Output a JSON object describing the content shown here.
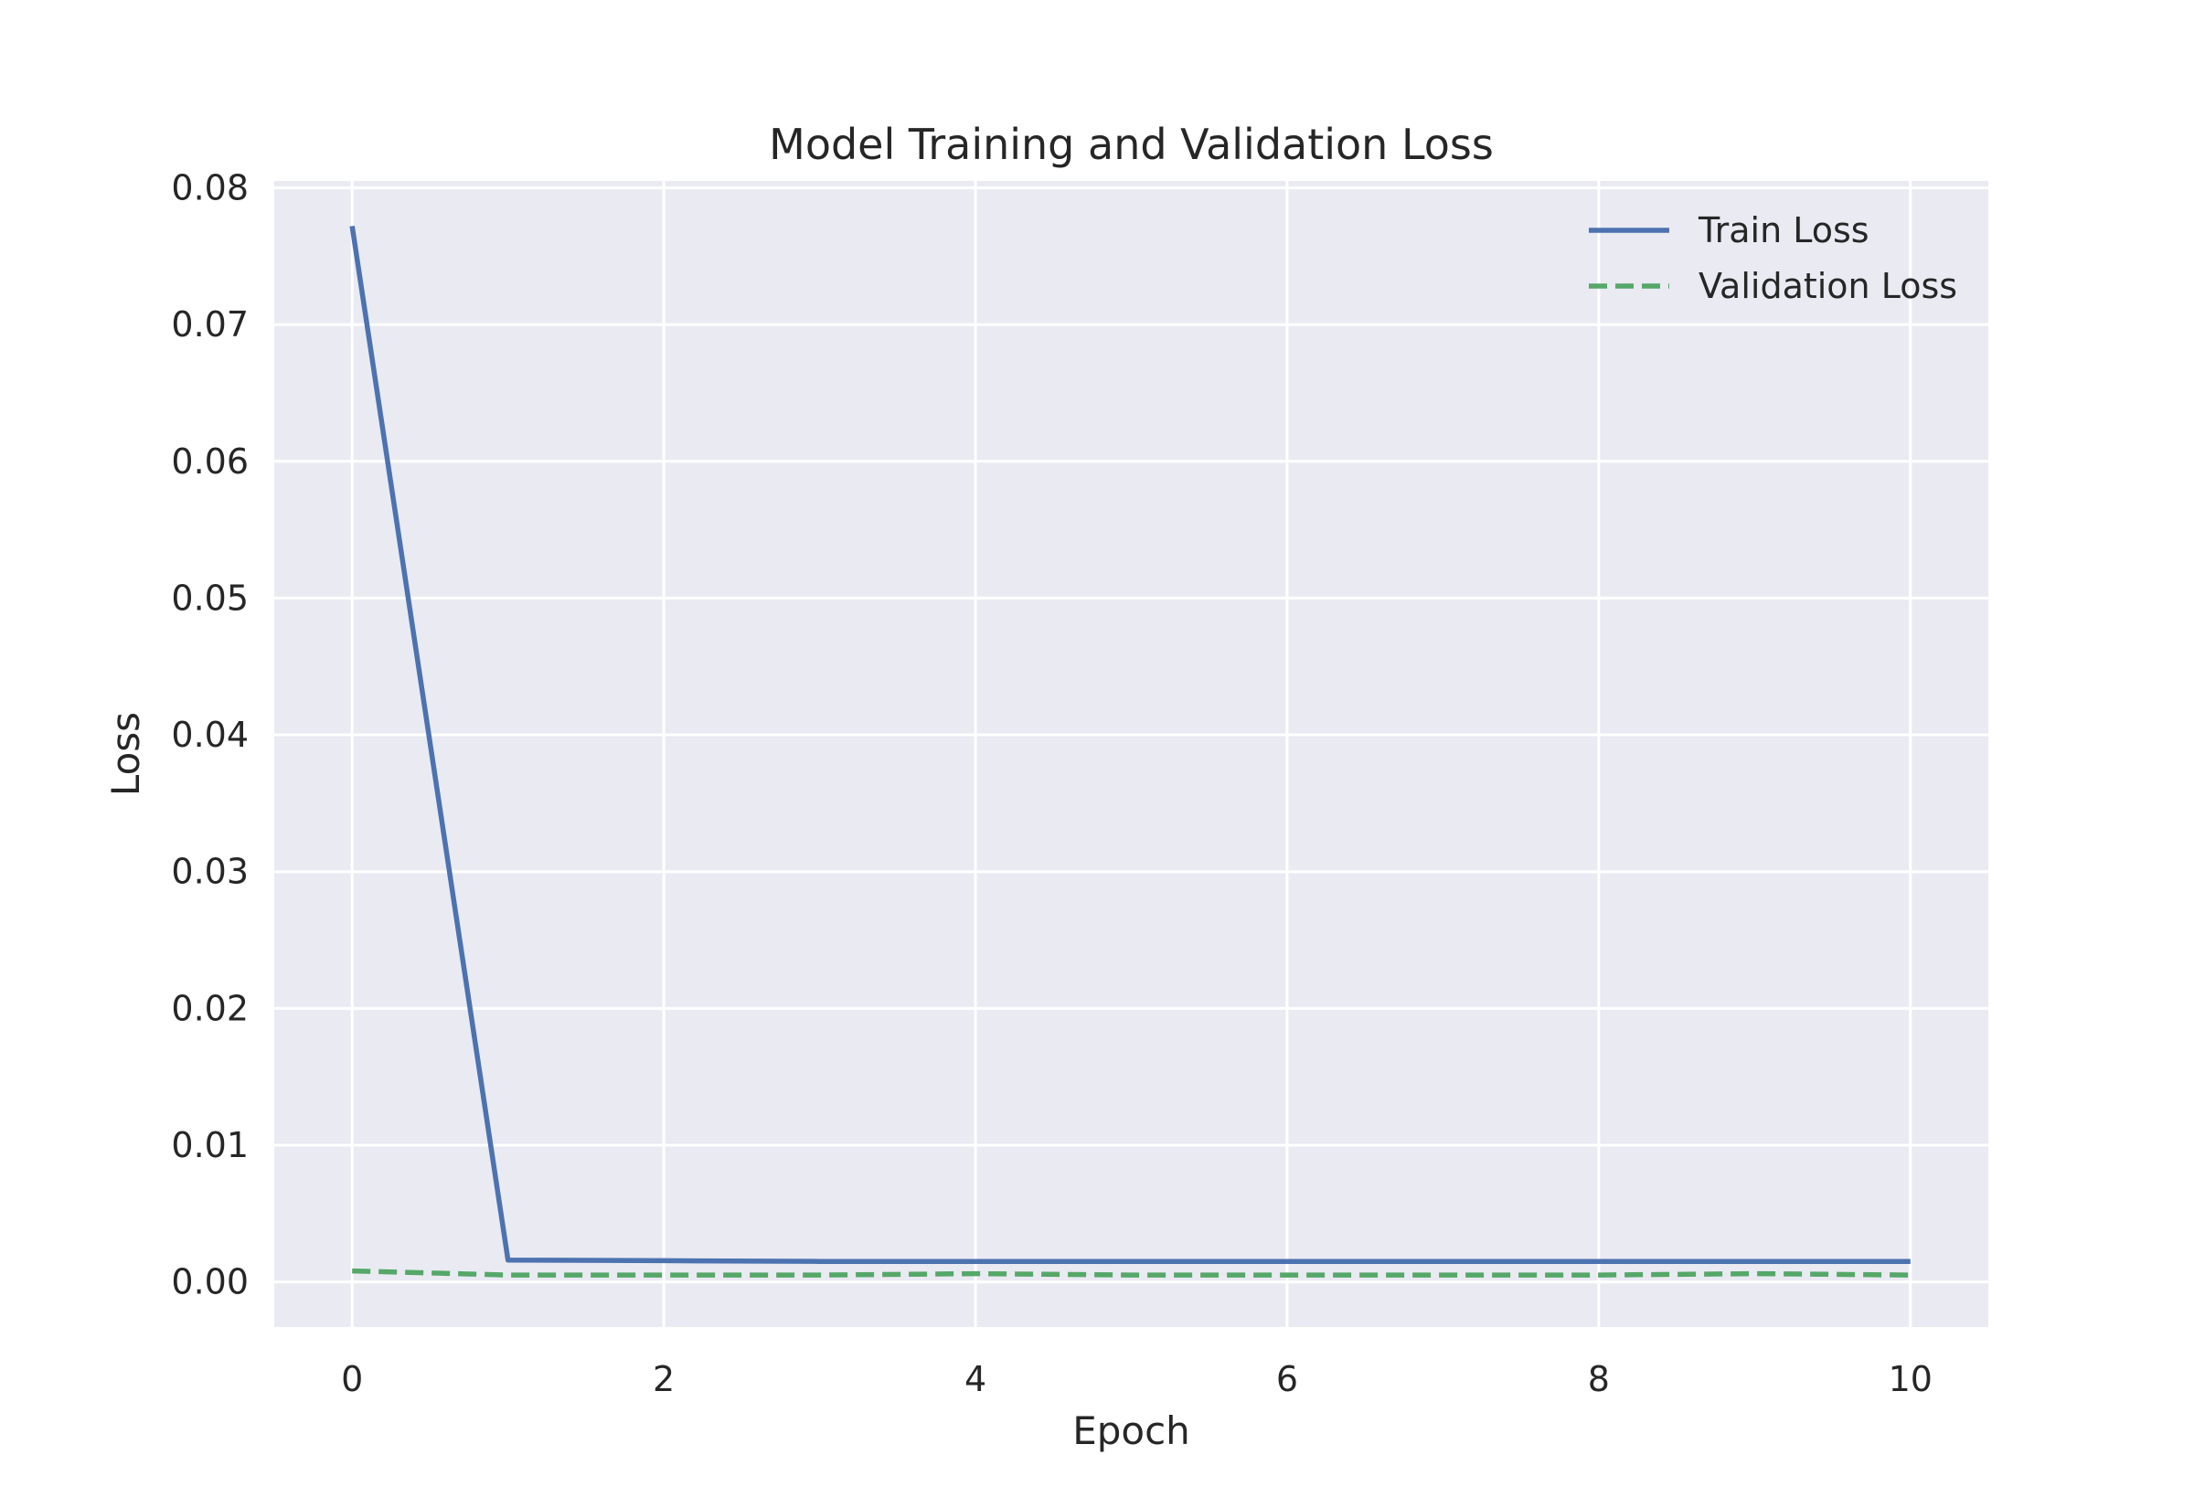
{
  "chart_data": {
    "type": "line",
    "title": "Model Training and Validation Loss",
    "xlabel": "Epoch",
    "ylabel": "Loss",
    "xlim": [
      -0.5,
      10.5
    ],
    "ylim": [
      -0.0033,
      0.0805
    ],
    "xticks": [
      0,
      2,
      4,
      6,
      8,
      10
    ],
    "xtick_labels": [
      "0",
      "2",
      "4",
      "6",
      "8",
      "10"
    ],
    "yticks": [
      0.0,
      0.01,
      0.02,
      0.03,
      0.04,
      0.05,
      0.06,
      0.07,
      0.08
    ],
    "ytick_labels": [
      "0.00",
      "0.01",
      "0.02",
      "0.03",
      "0.04",
      "0.05",
      "0.06",
      "0.07",
      "0.08"
    ],
    "grid": true,
    "legend_position": "top-right",
    "x": [
      0,
      1,
      2,
      3,
      4,
      5,
      6,
      7,
      8,
      9,
      10
    ],
    "series": [
      {
        "name": "Train Loss",
        "color": "#4c72b0",
        "style": "solid",
        "values": [
          0.0772,
          0.0016,
          0.00155,
          0.0015,
          0.0015,
          0.0015,
          0.0015,
          0.0015,
          0.0015,
          0.0015,
          0.0015
        ]
      },
      {
        "name": "Validation Loss",
        "color": "#55a868",
        "style": "dashed",
        "values": [
          0.0008,
          0.0005,
          0.0005,
          0.0005,
          0.0006,
          0.0005,
          0.0005,
          0.0005,
          0.0005,
          0.0006,
          0.0005
        ]
      }
    ]
  },
  "colors": {
    "plot_background": "#eaeaf2",
    "grid": "#ffffff",
    "text": "#262626"
  }
}
